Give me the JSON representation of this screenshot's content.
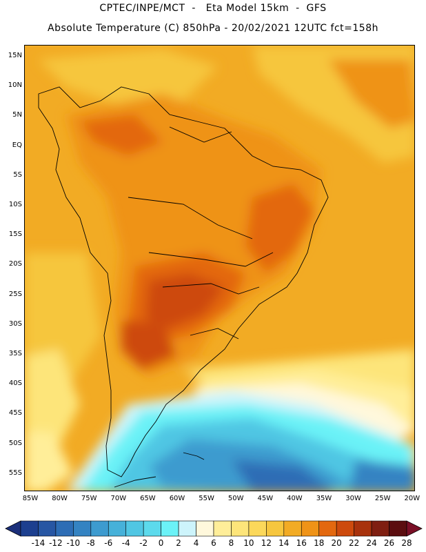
{
  "header": {
    "line1": "CPTEC/INPE/MCT  -   Eta Model 15km  -  GFS",
    "line2": "Absolute Temperature (C) 850hPa - 20/02/2021 12UTC fct=158h"
  },
  "map": {
    "lat_labels": [
      "15N",
      "10N",
      "5N",
      "EQ",
      "5S",
      "10S",
      "15S",
      "20S",
      "25S",
      "30S",
      "35S",
      "40S",
      "45S",
      "50S",
      "55S"
    ],
    "lon_labels": [
      "85W",
      "80W",
      "75W",
      "70W",
      "65W",
      "60W",
      "55W",
      "50W",
      "45W",
      "40W",
      "35W",
      "30W",
      "25W",
      "20W"
    ],
    "extent": {
      "lon_min": -86,
      "lon_max": -19.5,
      "lat_max": 17,
      "lat_min": -58
    }
  },
  "colorbar": {
    "labels": [
      "-14",
      "-12",
      "-10",
      "-8",
      "-6",
      "-4",
      "-2",
      "0",
      "2",
      "4",
      "6",
      "8",
      "10",
      "12",
      "14",
      "16",
      "18",
      "20",
      "22",
      "24",
      "26",
      "28"
    ],
    "colors": [
      "#1c3f8f",
      "#2756a3",
      "#2d6db5",
      "#3483c2",
      "#3d9bcf",
      "#46b1d9",
      "#50c6e3",
      "#5cdaec",
      "#6bf2f7",
      "#cdf4fb",
      "#fff8dc",
      "#ffee99",
      "#fde57a",
      "#fbd85a",
      "#f6c63e",
      "#f2ab24",
      "#ef9317",
      "#e3680f",
      "#cd4a0d",
      "#a8320c",
      "#7f1f11",
      "#5b0d0f"
    ],
    "under_color": "#1b2f7a",
    "over_color": "#7a0f26"
  }
}
